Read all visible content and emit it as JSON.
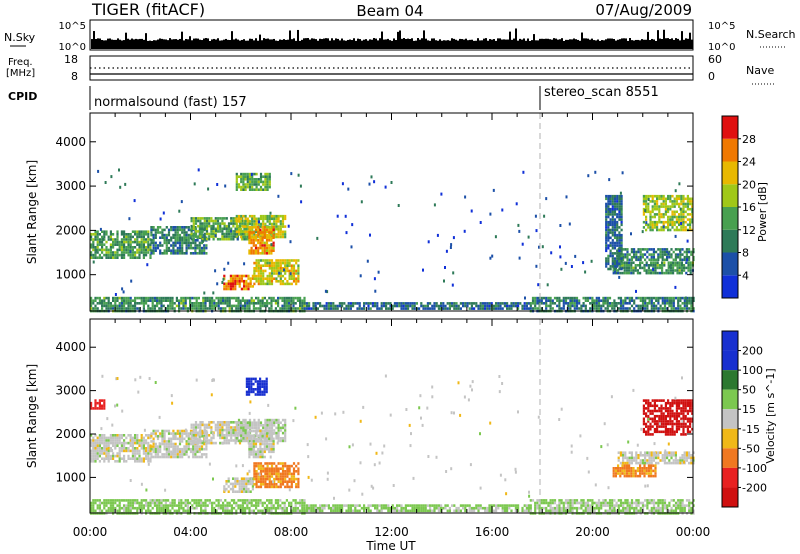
{
  "header": {
    "station": "TIGER (fitACF)",
    "beam": "Beam 04",
    "date": "07/Aug/2009"
  },
  "panels": {
    "nsky_label": "N.Sky",
    "nsky_tick_top": "10^5",
    "nsky_tick_bottom": "10^0",
    "nsearch_label": "N.Search",
    "nsearch_tick_top": "10^5",
    "nsearch_tick_bottom": "10^0",
    "freq_label_1": "Freq.",
    "freq_label_2": "[MHz]",
    "freq_tick_top": "18",
    "freq_tick_bottom": "8",
    "nave_label": "Nave",
    "nave_tick_top": "60",
    "nave_tick_bottom": "0",
    "cpid_label": "CPID",
    "cpid_1": "normalsound (fast) 157",
    "cpid_2": "stereo_scan 8551"
  },
  "colors": {
    "power": [
      "#1030d8",
      "#1c50a8",
      "#2e7a58",
      "#48a050",
      "#a0c818",
      "#e8b800",
      "#f07800",
      "#e01010"
    ],
    "velocity": [
      "#1830d0",
      "#2c7830",
      "#7cc850",
      "#c4c4c4",
      "#c4c4c4",
      "#f0b818",
      "#f07820",
      "#e82020",
      "#d01010"
    ]
  },
  "chart_data": [
    {
      "type": "heatmap",
      "title": "",
      "ylabel": "Slant Range [km]",
      "xlabel": "Time UT",
      "x_ticks": [
        "00:00",
        "04:00",
        "08:00",
        "12:00",
        "16:00",
        "20:00",
        "00:00"
      ],
      "x_range_hours": [
        0,
        24
      ],
      "y_ticks": [
        "1000",
        "2000",
        "3000",
        "4000"
      ],
      "y_range_km": [
        180,
        4650
      ],
      "colorbar_label": "Power [dB]",
      "colorbar_ticks": [
        "4",
        "8",
        "12",
        "16",
        "20",
        "24",
        "28"
      ],
      "colorbar_range": [
        0,
        32
      ],
      "regions": [
        {
          "t": [
            0.0,
            2.4
          ],
          "r": [
            1400,
            2000
          ],
          "v": 13
        },
        {
          "t": [
            2.4,
            4.6
          ],
          "r": [
            1500,
            2100
          ],
          "v": 10
        },
        {
          "t": [
            4.0,
            6.3
          ],
          "r": [
            1800,
            2300
          ],
          "v": 14
        },
        {
          "t": [
            5.8,
            7.8
          ],
          "r": [
            1850,
            2350
          ],
          "v": 18
        },
        {
          "t": [
            6.3,
            7.3
          ],
          "r": [
            1500,
            2100
          ],
          "v": 24
        },
        {
          "t": [
            5.8,
            7.2
          ],
          "r": [
            2900,
            3300
          ],
          "v": 15
        },
        {
          "t": [
            5.3,
            6.5
          ],
          "r": [
            700,
            1000
          ],
          "v": 26
        },
        {
          "t": [
            6.5,
            8.3
          ],
          "r": [
            800,
            1350
          ],
          "v": 20
        },
        {
          "t": [
            0.0,
            8.5
          ],
          "r": [
            200,
            500
          ],
          "v": 12
        },
        {
          "t": [
            8.5,
            17.5
          ],
          "r": [
            220,
            380
          ],
          "v": 8
        },
        {
          "t": [
            17.5,
            24.0
          ],
          "r": [
            200,
            500
          ],
          "v": 10
        },
        {
          "t": [
            21.0,
            24.0
          ],
          "r": [
            1350,
            1600
          ],
          "v": 11
        },
        {
          "t": [
            20.8,
            24.0
          ],
          "r": [
            1050,
            1300
          ],
          "v": 12
        },
        {
          "t": [
            22.0,
            24.0
          ],
          "r": [
            2000,
            2800
          ],
          "v": 18
        },
        {
          "t": [
            20.5,
            21.2
          ],
          "r": [
            1100,
            2800
          ],
          "v": 8
        }
      ]
    },
    {
      "type": "heatmap",
      "title": "",
      "ylabel": "Slant Range [km]",
      "xlabel": "Time UT",
      "x_ticks": [
        "00:00",
        "04:00",
        "08:00",
        "12:00",
        "16:00",
        "20:00",
        "00:00"
      ],
      "x_range_hours": [
        0,
        24
      ],
      "y_ticks": [
        "1000",
        "2000",
        "3000",
        "4000"
      ],
      "y_range_km": [
        180,
        4650
      ],
      "colorbar_label": "Velocity [m s^-1]",
      "colorbar_ticks": [
        "200",
        "100",
        "50",
        "15",
        "-15",
        "-50",
        "-100",
        "-200"
      ],
      "colorbar_range": [
        -250,
        250
      ],
      "regions": [
        {
          "t": [
            0.0,
            2.4
          ],
          "r": [
            1400,
            2000
          ],
          "v": 0
        },
        {
          "t": [
            2.4,
            4.6
          ],
          "r": [
            1500,
            2100
          ],
          "v": 0
        },
        {
          "t": [
            4.0,
            6.3
          ],
          "r": [
            1800,
            2300
          ],
          "v": 0
        },
        {
          "t": [
            5.8,
            7.8
          ],
          "r": [
            1850,
            2350
          ],
          "v": 5
        },
        {
          "t": [
            6.3,
            7.3
          ],
          "r": [
            1500,
            2100
          ],
          "v": 0
        },
        {
          "t": [
            6.2,
            7.0
          ],
          "r": [
            2900,
            3300
          ],
          "v": 220
        },
        {
          "t": [
            5.3,
            6.5
          ],
          "r": [
            700,
            1000
          ],
          "v": 0
        },
        {
          "t": [
            6.5,
            8.3
          ],
          "r": [
            800,
            1350
          ],
          "v": -60
        },
        {
          "t": [
            0.0,
            8.5
          ],
          "r": [
            200,
            500
          ],
          "v": 30
        },
        {
          "t": [
            8.5,
            17.5
          ],
          "r": [
            220,
            380
          ],
          "v": 25
        },
        {
          "t": [
            17.5,
            24.0
          ],
          "r": [
            200,
            500
          ],
          "v": 20
        },
        {
          "t": [
            21.0,
            24.0
          ],
          "r": [
            1350,
            1600
          ],
          "v": 0
        },
        {
          "t": [
            20.8,
            22.5
          ],
          "r": [
            1050,
            1300
          ],
          "v": -60
        },
        {
          "t": [
            22.0,
            24.0
          ],
          "r": [
            2000,
            2800
          ],
          "v": -220
        },
        {
          "t": [
            0.0,
            0.6
          ],
          "r": [
            2600,
            2800
          ],
          "v": -180
        }
      ]
    }
  ]
}
